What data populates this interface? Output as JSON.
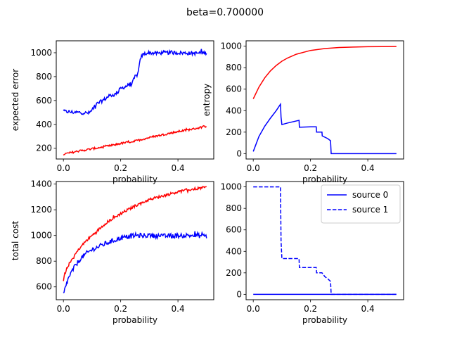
{
  "figure": {
    "suptitle": "beta=0.700000"
  },
  "colors": {
    "red": "#ff0000",
    "blue": "#0000ff"
  },
  "chart_data": [
    {
      "id": "expected-error",
      "type": "line",
      "xlabel": "probability",
      "ylabel": "expected error",
      "xlim": [
        -0.025,
        0.525
      ],
      "ylim": [
        110,
        1100
      ],
      "xticks": [
        0.0,
        0.2,
        0.4
      ],
      "xtick_labels": [
        "0.0",
        "0.2",
        "0.4"
      ],
      "yticks": [
        200,
        400,
        600,
        800,
        1000
      ],
      "ytick_labels": [
        "200",
        "400",
        "600",
        "800",
        "1000"
      ],
      "series": [
        {
          "color": "blue",
          "style": "solid",
          "noise": 15,
          "x": [
            0.0,
            0.02,
            0.04,
            0.06,
            0.08,
            0.09,
            0.1,
            0.11,
            0.13,
            0.15,
            0.16,
            0.18,
            0.2,
            0.22,
            0.24,
            0.25,
            0.26,
            0.27,
            0.28,
            0.3,
            0.32,
            0.35,
            0.4,
            0.45,
            0.5
          ],
          "y": [
            510,
            505,
            500,
            500,
            495,
            495,
            520,
            560,
            590,
            620,
            640,
            650,
            700,
            720,
            740,
            800,
            820,
            960,
            990,
            1000,
            995,
            1000,
            1000,
            995,
            1000
          ]
        },
        {
          "color": "red",
          "style": "solid",
          "noise": 8,
          "x": [
            0.0,
            0.05,
            0.1,
            0.15,
            0.2,
            0.25,
            0.3,
            0.35,
            0.4,
            0.45,
            0.5
          ],
          "y": [
            150,
            175,
            195,
            215,
            240,
            260,
            290,
            315,
            340,
            360,
            385
          ]
        }
      ]
    },
    {
      "id": "entropy",
      "type": "line",
      "xlabel": "probability",
      "ylabel": "entropy",
      "xlim": [
        -0.025,
        0.525
      ],
      "ylim": [
        -50,
        1050
      ],
      "xticks": [
        0.0,
        0.2,
        0.4
      ],
      "xtick_labels": [
        "0.0",
        "0.2",
        "0.4"
      ],
      "yticks": [
        0,
        200,
        400,
        600,
        800,
        1000
      ],
      "ytick_labels": [
        "0",
        "200",
        "400",
        "600",
        "800",
        "1000"
      ],
      "series": [
        {
          "color": "red",
          "style": "solid",
          "noise": 0,
          "x": [
            0.0,
            0.02,
            0.04,
            0.06,
            0.08,
            0.1,
            0.12,
            0.15,
            0.2,
            0.25,
            0.3,
            0.35,
            0.4,
            0.45,
            0.5
          ],
          "y": [
            510,
            620,
            705,
            770,
            820,
            860,
            890,
            925,
            960,
            978,
            988,
            992,
            995,
            996,
            997
          ]
        },
        {
          "color": "blue",
          "style": "solid",
          "noise": 0,
          "x": [
            0.0,
            0.02,
            0.04,
            0.06,
            0.08,
            0.095,
            0.097,
            0.1,
            0.12,
            0.16,
            0.161,
            0.2,
            0.22,
            0.221,
            0.24,
            0.241,
            0.26,
            0.27,
            0.272,
            0.5
          ],
          "y": [
            20,
            160,
            255,
            330,
            400,
            460,
            340,
            270,
            285,
            310,
            245,
            250,
            250,
            200,
            200,
            165,
            140,
            120,
            0,
            0
          ]
        }
      ]
    },
    {
      "id": "total-cost",
      "type": "line",
      "xlabel": "probability",
      "ylabel": "total cost",
      "xlim": [
        -0.025,
        0.525
      ],
      "ylim": [
        500,
        1420
      ],
      "xticks": [
        0.0,
        0.2,
        0.4
      ],
      "xtick_labels": [
        "0.0",
        "0.2",
        "0.4"
      ],
      "yticks": [
        600,
        800,
        1000,
        1200,
        1400
      ],
      "ytick_labels": [
        "600",
        "800",
        "1000",
        "1200",
        "1400"
      ],
      "series": [
        {
          "color": "red",
          "style": "solid",
          "noise": 10,
          "x": [
            0.0,
            0.01,
            0.02,
            0.04,
            0.06,
            0.08,
            0.1,
            0.12,
            0.15,
            0.2,
            0.25,
            0.3,
            0.35,
            0.4,
            0.45,
            0.5
          ],
          "y": [
            660,
            730,
            780,
            850,
            910,
            960,
            1000,
            1040,
            1100,
            1170,
            1230,
            1280,
            1310,
            1340,
            1360,
            1375
          ]
        },
        {
          "color": "blue",
          "style": "solid",
          "noise": 18,
          "x": [
            0.0,
            0.01,
            0.02,
            0.04,
            0.06,
            0.08,
            0.1,
            0.12,
            0.15,
            0.2,
            0.25,
            0.3,
            0.35,
            0.4,
            0.45,
            0.5
          ],
          "y": [
            540,
            620,
            680,
            760,
            820,
            860,
            890,
            910,
            940,
            980,
            1000,
            1000,
            995,
            1000,
            1000,
            995
          ]
        }
      ]
    },
    {
      "id": "sources",
      "type": "line",
      "xlabel": "probability",
      "ylabel": "",
      "xlim": [
        -0.025,
        0.525
      ],
      "ylim": [
        -50,
        1050
      ],
      "xticks": [
        0.0,
        0.2,
        0.4
      ],
      "xtick_labels": [
        "0.0",
        "0.2",
        "0.4"
      ],
      "yticks": [
        0,
        200,
        400,
        600,
        800,
        1000
      ],
      "ytick_labels": [
        "0",
        "200",
        "400",
        "600",
        "800",
        "1000"
      ],
      "legend": {
        "position": "upper right"
      },
      "series": [
        {
          "name": "source 0",
          "color": "blue",
          "style": "solid",
          "noise": 0,
          "x": [
            0.0,
            0.5
          ],
          "y": [
            0,
            0
          ]
        },
        {
          "name": "source 1",
          "color": "blue",
          "style": "dashed",
          "noise": 0,
          "x": [
            0.0,
            0.095,
            0.097,
            0.1,
            0.16,
            0.161,
            0.22,
            0.221,
            0.24,
            0.25,
            0.26,
            0.27,
            0.272,
            0.5
          ],
          "y": [
            1000,
            1000,
            500,
            333,
            333,
            250,
            250,
            200,
            200,
            165,
            145,
            120,
            0,
            0
          ]
        }
      ]
    }
  ]
}
